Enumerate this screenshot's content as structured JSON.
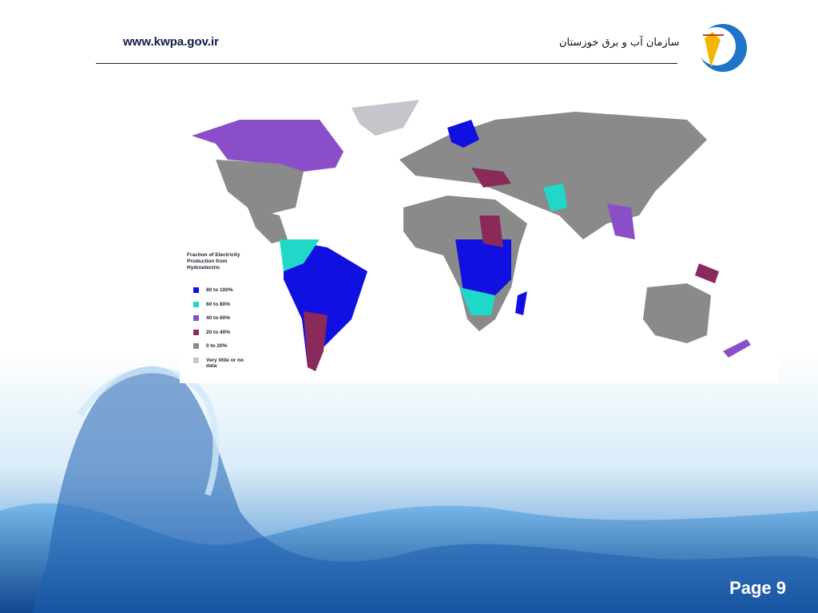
{
  "header": {
    "url": "www.kwpa.gov.ir",
    "organization": "سازمان آب و برق خوزستان"
  },
  "map": {
    "legend": {
      "title": "Fraction of Electricity Production from Hydroelectric",
      "items": [
        {
          "label": "80 to 100%",
          "color": "#1010e0"
        },
        {
          "label": "60 to 80%",
          "color": "#20d8c8"
        },
        {
          "label": "40 to 60%",
          "color": "#8a4fc8"
        },
        {
          "label": "20 to 40%",
          "color": "#8a2a5a"
        },
        {
          "label": "0 to 20%",
          "color": "#8a8a8a"
        },
        {
          "label": "Very little or no data",
          "color": "#c8c4cc"
        }
      ]
    }
  },
  "footer": {
    "page": "Page 9"
  }
}
